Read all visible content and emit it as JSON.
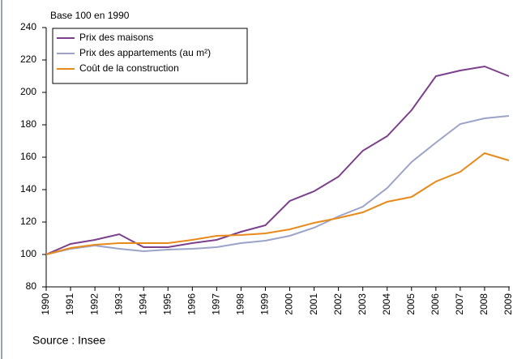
{
  "chart_data": {
    "type": "line",
    "subtitle": "Base 100 en 1990",
    "source": "Source : Insee",
    "categories": [
      "1990",
      "1991",
      "1992",
      "1993",
      "1994",
      "1995",
      "1996",
      "1997",
      "1998",
      "1999",
      "2000",
      "2001",
      "2002",
      "2003",
      "2004",
      "2005",
      "2006",
      "2007",
      "2008",
      "2009"
    ],
    "series": [
      {
        "name": "Prix des maisons",
        "color": "#7b3f8c",
        "values": [
          100,
          106.5,
          109,
          112.5,
          104.5,
          104.5,
          107,
          109,
          114,
          118,
          133,
          139,
          148,
          164,
          173,
          189,
          210,
          213.5,
          216,
          210
        ]
      },
      {
        "name": "Prix des appartements (au m²)",
        "color": "#9ba3c9",
        "values": [
          100,
          103.5,
          105.5,
          103.5,
          102,
          103,
          103.5,
          104.5,
          107,
          108.5,
          111.5,
          116.5,
          123.5,
          129.5,
          141,
          157,
          169,
          180.5,
          184,
          185.5
        ]
      },
      {
        "name": "Coût de la construction",
        "color": "#e88a1a",
        "values": [
          100,
          104,
          106,
          107,
          107,
          107,
          109,
          111.5,
          112,
          113,
          115.5,
          119.5,
          122.5,
          126,
          132.5,
          135.5,
          145,
          151,
          162.5,
          158
        ]
      }
    ],
    "ylim": [
      80,
      240
    ],
    "yticks": [
      80,
      100,
      120,
      140,
      160,
      180,
      200,
      220,
      240
    ],
    "grid": false,
    "legend": "top-left"
  }
}
